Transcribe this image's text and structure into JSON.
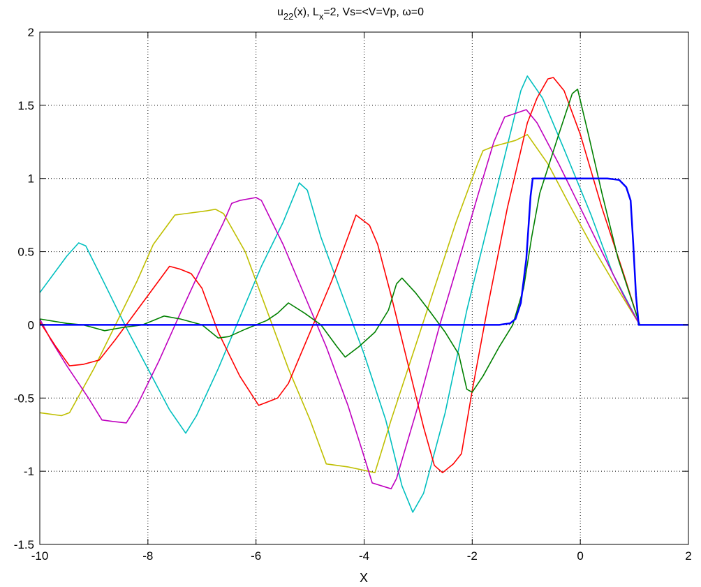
{
  "chart_data": {
    "type": "line",
    "title": {
      "base": "u",
      "base_sub": "22",
      "mid": "(x), L",
      "mid_sub": "x",
      "rest": "=2,  Vs=<V=Vp, ω=0"
    },
    "xlabel": "X",
    "ylabel": "",
    "xlim": [
      -10,
      2
    ],
    "ylim": [
      -1.5,
      2
    ],
    "xticks": [
      "-10",
      "-8",
      "-6",
      "-4",
      "-2",
      "0",
      "2"
    ],
    "yticks": [
      "-1.5",
      "-1",
      "-0.5",
      "0",
      "0.5",
      "1",
      "1.5",
      "2"
    ],
    "grid": true,
    "series": [
      {
        "color": "#00bfbf",
        "points": [
          [
            -10,
            0.22
          ],
          [
            -9.5,
            0.47
          ],
          [
            -9.28,
            0.56
          ],
          [
            -9.15,
            0.54
          ],
          [
            -8.8,
            0.28
          ],
          [
            -8.4,
            -0.02
          ],
          [
            -8,
            -0.3
          ],
          [
            -7.6,
            -0.58
          ],
          [
            -7.3,
            -0.74
          ],
          [
            -7.1,
            -0.62
          ],
          [
            -6.7,
            -0.3
          ],
          [
            -6.3,
            0.05
          ],
          [
            -5.9,
            0.4
          ],
          [
            -5.5,
            0.7
          ],
          [
            -5.2,
            0.97
          ],
          [
            -5.05,
            0.92
          ],
          [
            -4.8,
            0.6
          ],
          [
            -4.4,
            0.2
          ],
          [
            -4.0,
            -0.2
          ],
          [
            -3.6,
            -0.65
          ],
          [
            -3.3,
            -1.1
          ],
          [
            -3.1,
            -1.28
          ],
          [
            -2.9,
            -1.15
          ],
          [
            -2.5,
            -0.6
          ],
          [
            -2.1,
            0.1
          ],
          [
            -1.7,
            0.7
          ],
          [
            -1.3,
            1.3
          ],
          [
            -1.1,
            1.6
          ],
          [
            -0.98,
            1.7
          ],
          [
            -0.7,
            1.55
          ],
          [
            -0.3,
            1.2
          ],
          [
            0.2,
            0.75
          ],
          [
            0.6,
            0.35
          ],
          [
            1.1,
            0.0
          ],
          [
            2,
            0.0
          ]
        ]
      },
      {
        "color": "#bfbf00",
        "points": [
          [
            -10,
            -0.6
          ],
          [
            -9.6,
            -0.62
          ],
          [
            -9.45,
            -0.6
          ],
          [
            -9.0,
            -0.3
          ],
          [
            -8.6,
            0.0
          ],
          [
            -8.2,
            0.3
          ],
          [
            -7.9,
            0.55
          ],
          [
            -7.5,
            0.75
          ],
          [
            -7.3,
            0.76
          ],
          [
            -6.9,
            0.78
          ],
          [
            -6.75,
            0.79
          ],
          [
            -6.6,
            0.76
          ],
          [
            -6.2,
            0.5
          ],
          [
            -5.8,
            0.1
          ],
          [
            -5.4,
            -0.3
          ],
          [
            -5.0,
            -0.65
          ],
          [
            -4.7,
            -0.95
          ],
          [
            -4.3,
            -0.97
          ],
          [
            -3.8,
            -1.01
          ],
          [
            -3.5,
            -0.65
          ],
          [
            -3.1,
            -0.2
          ],
          [
            -2.7,
            0.25
          ],
          [
            -2.3,
            0.7
          ],
          [
            -1.9,
            1.1
          ],
          [
            -1.8,
            1.19
          ],
          [
            -1.6,
            1.22
          ],
          [
            -1.2,
            1.26
          ],
          [
            -0.98,
            1.3
          ],
          [
            -0.6,
            1.1
          ],
          [
            -0.2,
            0.82
          ],
          [
            0.2,
            0.55
          ],
          [
            0.6,
            0.3
          ],
          [
            1.1,
            0.0
          ],
          [
            2,
            0.0
          ]
        ]
      },
      {
        "color": "#bf00bf",
        "points": [
          [
            -10,
            0.04
          ],
          [
            -9.8,
            -0.1
          ],
          [
            -9.5,
            -0.28
          ],
          [
            -9.1,
            -0.5
          ],
          [
            -8.85,
            -0.65
          ],
          [
            -8.65,
            -0.66
          ],
          [
            -8.4,
            -0.67
          ],
          [
            -8.2,
            -0.55
          ],
          [
            -7.8,
            -0.25
          ],
          [
            -7.4,
            0.08
          ],
          [
            -7.0,
            0.4
          ],
          [
            -6.6,
            0.7
          ],
          [
            -6.45,
            0.83
          ],
          [
            -6.3,
            0.85
          ],
          [
            -6.0,
            0.87
          ],
          [
            -5.9,
            0.85
          ],
          [
            -5.5,
            0.55
          ],
          [
            -5.1,
            0.2
          ],
          [
            -4.7,
            -0.15
          ],
          [
            -4.3,
            -0.55
          ],
          [
            -4.0,
            -0.9
          ],
          [
            -3.85,
            -1.08
          ],
          [
            -3.5,
            -1.12
          ],
          [
            -3.4,
            -1.05
          ],
          [
            -3.0,
            -0.55
          ],
          [
            -2.6,
            0.0
          ],
          [
            -2.2,
            0.5
          ],
          [
            -1.9,
            0.88
          ],
          [
            -1.6,
            1.25
          ],
          [
            -1.4,
            1.42
          ],
          [
            -1.0,
            1.47
          ],
          [
            -0.8,
            1.38
          ],
          [
            -0.4,
            1.1
          ],
          [
            0.0,
            0.8
          ],
          [
            0.4,
            0.5
          ],
          [
            0.8,
            0.2
          ],
          [
            1.1,
            0.0
          ],
          [
            2,
            0.0
          ]
        ]
      },
      {
        "color": "#ff0000",
        "points": [
          [
            -10,
            0.02
          ],
          [
            -9.7,
            -0.15
          ],
          [
            -9.45,
            -0.28
          ],
          [
            -9.2,
            -0.27
          ],
          [
            -8.9,
            -0.24
          ],
          [
            -8.6,
            -0.1
          ],
          [
            -8.3,
            0.05
          ],
          [
            -8.0,
            0.2
          ],
          [
            -7.6,
            0.4
          ],
          [
            -7.4,
            0.38
          ],
          [
            -7.2,
            0.35
          ],
          [
            -7.0,
            0.25
          ],
          [
            -6.7,
            -0.05
          ],
          [
            -6.3,
            -0.35
          ],
          [
            -5.95,
            -0.55
          ],
          [
            -5.6,
            -0.5
          ],
          [
            -5.4,
            -0.4
          ],
          [
            -5.0,
            -0.05
          ],
          [
            -4.6,
            0.3
          ],
          [
            -4.3,
            0.6
          ],
          [
            -4.15,
            0.75
          ],
          [
            -3.9,
            0.68
          ],
          [
            -3.75,
            0.55
          ],
          [
            -3.5,
            0.2
          ],
          [
            -3.2,
            -0.25
          ],
          [
            -2.9,
            -0.7
          ],
          [
            -2.7,
            -0.96
          ],
          [
            -2.55,
            -1.01
          ],
          [
            -2.35,
            -0.95
          ],
          [
            -2.2,
            -0.88
          ],
          [
            -2.0,
            -0.45
          ],
          [
            -1.7,
            0.15
          ],
          [
            -1.35,
            0.8
          ],
          [
            -0.98,
            1.38
          ],
          [
            -0.8,
            1.55
          ],
          [
            -0.6,
            1.68
          ],
          [
            -0.5,
            1.69
          ],
          [
            -0.3,
            1.6
          ],
          [
            0.0,
            1.3
          ],
          [
            0.4,
            0.8
          ],
          [
            0.8,
            0.35
          ],
          [
            1.1,
            0.0
          ],
          [
            2,
            0.0
          ]
        ]
      },
      {
        "color": "#008000",
        "points": [
          [
            -10,
            0.04
          ],
          [
            -9.5,
            0.01
          ],
          [
            -9.2,
            0.0
          ],
          [
            -8.8,
            -0.04
          ],
          [
            -8.5,
            -0.02
          ],
          [
            -8.1,
            0.0
          ],
          [
            -7.9,
            0.03
          ],
          [
            -7.7,
            0.06
          ],
          [
            -7.4,
            0.04
          ],
          [
            -7.0,
            0.0
          ],
          [
            -6.7,
            -0.09
          ],
          [
            -6.5,
            -0.08
          ],
          [
            -6.2,
            -0.03
          ],
          [
            -5.8,
            0.03
          ],
          [
            -5.6,
            0.08
          ],
          [
            -5.4,
            0.15
          ],
          [
            -5.1,
            0.08
          ],
          [
            -4.8,
            0.0
          ],
          [
            -4.5,
            -0.15
          ],
          [
            -4.35,
            -0.22
          ],
          [
            -4.1,
            -0.15
          ],
          [
            -3.8,
            -0.05
          ],
          [
            -3.55,
            0.1
          ],
          [
            -3.4,
            0.28
          ],
          [
            -3.3,
            0.32
          ],
          [
            -3.05,
            0.22
          ],
          [
            -2.8,
            0.1
          ],
          [
            -2.5,
            -0.05
          ],
          [
            -2.25,
            -0.2
          ],
          [
            -2.1,
            -0.44
          ],
          [
            -2.0,
            -0.46
          ],
          [
            -1.8,
            -0.35
          ],
          [
            -1.5,
            -0.15
          ],
          [
            -1.25,
            0.0
          ],
          [
            -1.05,
            0.25
          ],
          [
            -0.9,
            0.6
          ],
          [
            -0.75,
            0.9
          ],
          [
            -0.4,
            1.3
          ],
          [
            -0.15,
            1.58
          ],
          [
            -0.05,
            1.61
          ],
          [
            0.15,
            1.3
          ],
          [
            0.4,
            0.9
          ],
          [
            0.7,
            0.45
          ],
          [
            1.1,
            0.0
          ],
          [
            2,
            0.0
          ]
        ]
      },
      {
        "color": "#0000ff",
        "points": [
          [
            -10,
            0.0
          ],
          [
            -5,
            0.0
          ],
          [
            -2,
            0.0
          ],
          [
            -1.5,
            0.0
          ],
          [
            -1.3,
            0.01
          ],
          [
            -1.2,
            0.04
          ],
          [
            -1.1,
            0.15
          ],
          [
            -1.0,
            0.45
          ],
          [
            -0.92,
            0.88
          ],
          [
            -0.88,
            1.0
          ],
          [
            -0.5,
            1.0
          ],
          [
            0.0,
            1.0
          ],
          [
            0.5,
            1.0
          ],
          [
            0.72,
            0.99
          ],
          [
            0.85,
            0.94
          ],
          [
            0.93,
            0.85
          ],
          [
            0.98,
            0.55
          ],
          [
            1.03,
            0.2
          ],
          [
            1.08,
            0.0
          ],
          [
            2,
            0.0
          ]
        ]
      }
    ]
  }
}
